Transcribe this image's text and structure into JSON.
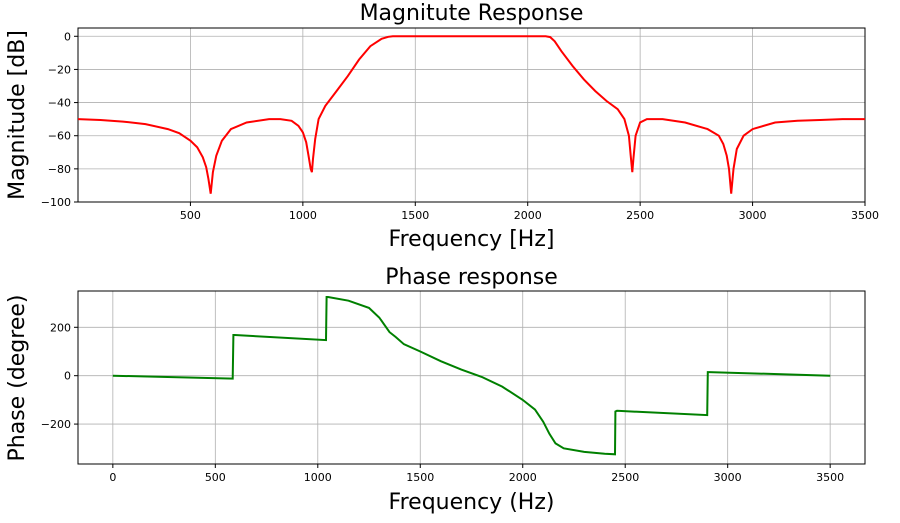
{
  "chart_data": [
    {
      "type": "line",
      "title": "Magnitute Response",
      "xlabel": "Frequency [Hz]",
      "ylabel": "Magnitude [dB]",
      "xlim": [
        0,
        3500
      ],
      "ylim": [
        -100,
        5
      ],
      "grid": true,
      "color": "#ff0000",
      "xticks": [
        500,
        1000,
        1500,
        2000,
        2500,
        3000,
        3500
      ],
      "xtick_labels": [
        "500",
        "1000",
        "1500",
        "2000",
        "2500",
        "3000",
        "3500"
      ],
      "yticks": [
        0,
        -20,
        -40,
        -60,
        -80,
        -100
      ],
      "ytick_labels": [
        "0",
        "−20",
        "−40",
        "−60",
        "−80",
        "−100"
      ],
      "series": [
        {
          "x": [
            0,
            100,
            200,
            300,
            400,
            450,
            500,
            530,
            555,
            570,
            580,
            590,
            600,
            615,
            640,
            680,
            750,
            850,
            900,
            950,
            980,
            1000,
            1015,
            1025,
            1035,
            1040,
            1045,
            1055,
            1070,
            1100,
            1150,
            1200,
            1250,
            1300,
            1350,
            1380,
            1400,
            1420,
            1450,
            1500,
            1600,
            1700,
            1800,
            1900,
            2000,
            2050,
            2080,
            2100,
            2120,
            2150,
            2200,
            2250,
            2300,
            2350,
            2400,
            2430,
            2450,
            2458,
            2465,
            2470,
            2480,
            2500,
            2530,
            2600,
            2700,
            2800,
            2850,
            2870,
            2885,
            2895,
            2905,
            2915,
            2930,
            2960,
            3000,
            3100,
            3200,
            3300,
            3400,
            3500
          ],
          "y": [
            -50,
            -50.5,
            -51.5,
            -53,
            -56,
            -58.5,
            -63,
            -67,
            -73,
            -79,
            -86,
            -95,
            -82,
            -72,
            -63,
            -56,
            -52,
            -50,
            -50,
            -51,
            -54,
            -58,
            -64,
            -72,
            -80,
            -82,
            -74,
            -62,
            -50,
            -42,
            -33,
            -24,
            -14,
            -6,
            -1.5,
            -0.3,
            0,
            0,
            0,
            0,
            0,
            0,
            0,
            0,
            0,
            0,
            0,
            -0.5,
            -3,
            -9,
            -18,
            -26,
            -33,
            -39,
            -44,
            -50,
            -60,
            -72,
            -82,
            -74,
            -60,
            -52,
            -50,
            -50,
            -52,
            -56,
            -60,
            -65,
            -72,
            -80,
            -95,
            -80,
            -68,
            -60,
            -56,
            -52,
            -51,
            -50.5,
            -50,
            -50
          ]
        }
      ]
    },
    {
      "type": "line",
      "title": "Phase response",
      "xlabel": "Frequency (Hz)",
      "ylabel": "Phase (degree)",
      "xlim": [
        -170,
        3670
      ],
      "ylim": [
        -365,
        350
      ],
      "grid": true,
      "color": "#008000",
      "xticks": [
        0,
        500,
        1000,
        1500,
        2000,
        2500,
        3000,
        3500
      ],
      "xtick_labels": [
        "0",
        "500",
        "1000",
        "1500",
        "2000",
        "2500",
        "3000",
        "3500"
      ],
      "yticks": [
        200,
        0,
        -200
      ],
      "ytick_labels": [
        "200",
        "0",
        "−200"
      ],
      "series": [
        {
          "x": [
            0,
            585,
            588,
            595,
            1040,
            1043,
            1050,
            1150,
            1250,
            1300,
            1350,
            1380,
            1420,
            1500,
            1600,
            1700,
            1800,
            1900,
            2000,
            2060,
            2100,
            2130,
            2160,
            2200,
            2300,
            2400,
            2450,
            2452,
            2460,
            2900,
            2903,
            2910,
            3500
          ],
          "y": [
            0,
            -12,
            168,
            168,
            147,
            325,
            325,
            310,
            280,
            240,
            180,
            160,
            130,
            100,
            60,
            25,
            -5,
            -45,
            -100,
            -140,
            -190,
            -240,
            -280,
            -300,
            -315,
            -323,
            -325,
            -148,
            -145,
            -163,
            15,
            15,
            0
          ]
        }
      ]
    }
  ]
}
